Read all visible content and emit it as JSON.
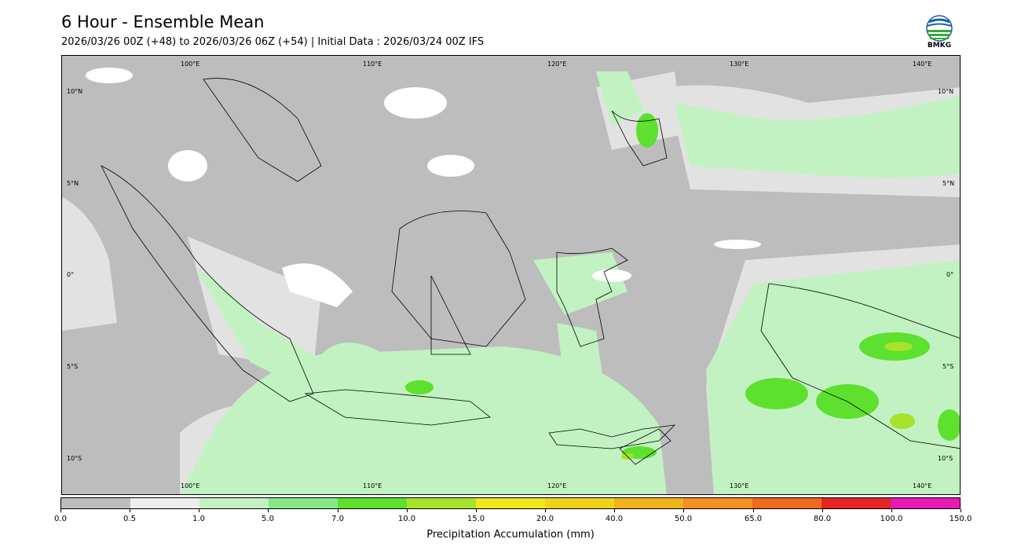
{
  "header": {
    "title": "6 Hour - Ensemble Mean",
    "subtitle": "2026/03/26 00Z (+48) to 2026/03/26 06Z (+54) | Initial Data : 2026/03/24 00Z IFS"
  },
  "logo": {
    "text": "BMKG"
  },
  "map": {
    "lon_labels": [
      "100°E",
      "110°E",
      "120°E",
      "130°E",
      "140°E"
    ],
    "lat_labels": [
      "10°N",
      "5°N",
      "0°",
      "5°S",
      "10°S"
    ],
    "extent": {
      "lon": [
        93,
        142
      ],
      "lat": [
        -12,
        12
      ]
    }
  },
  "colorbar": {
    "title": "Precipitation Accumulation (mm)",
    "ticks": [
      "0.0",
      "0.5",
      "1.0",
      "5.0",
      "7.0",
      "10.0",
      "15.0",
      "20.0",
      "40.0",
      "50.0",
      "65.0",
      "80.0",
      "100.0",
      "150.0"
    ],
    "colors": [
      "#bdbdbd",
      "#eeeeee",
      "#c2f2c2",
      "#86e886",
      "#5ee02e",
      "#a6e32a",
      "#f2e61e",
      "#f0d21a",
      "#f2b21a",
      "#f29020",
      "#ee6a1c",
      "#e62424",
      "#e61ab4"
    ]
  }
}
